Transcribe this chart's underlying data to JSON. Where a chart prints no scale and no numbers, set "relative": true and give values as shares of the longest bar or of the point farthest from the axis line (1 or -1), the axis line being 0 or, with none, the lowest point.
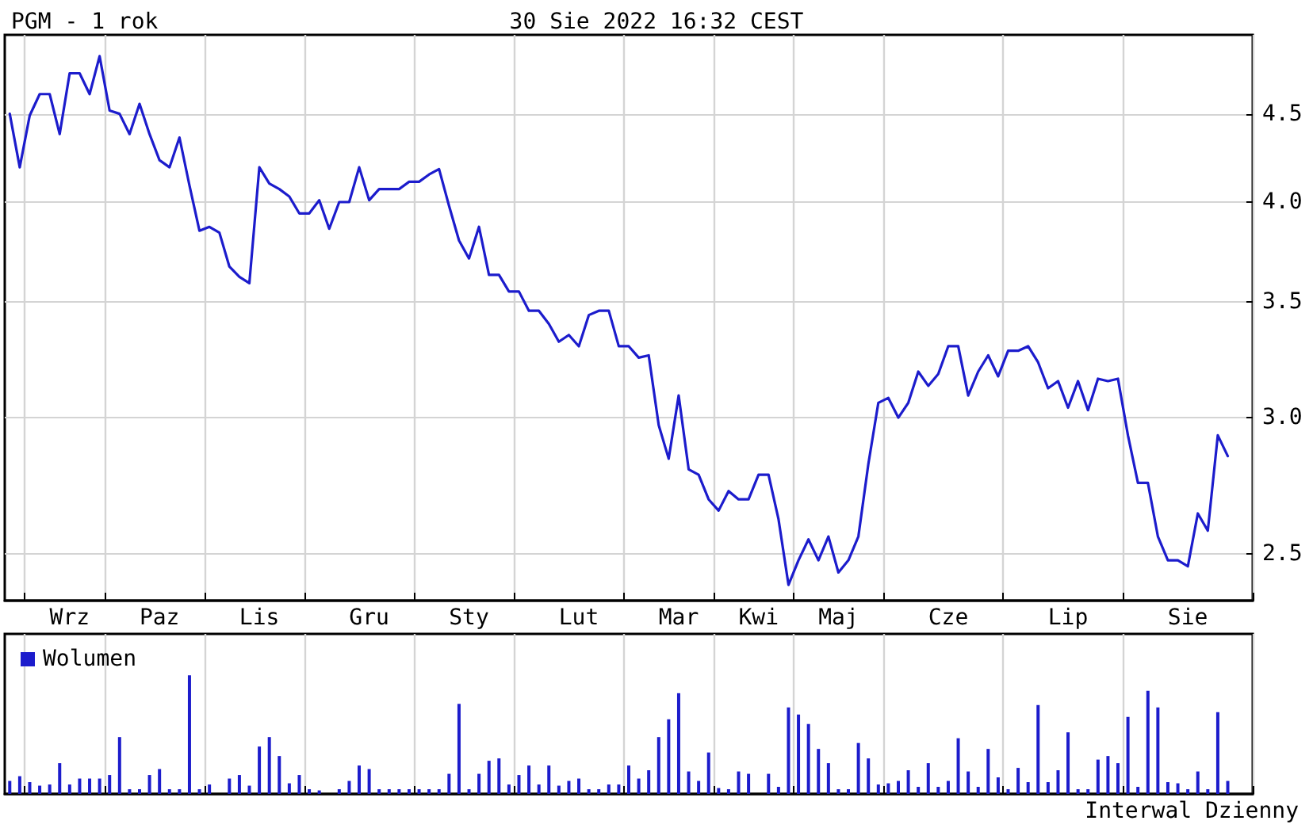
{
  "chart_data": [
    {
      "type": "line",
      "title": "PGM - 1 rok",
      "subtitle": "30 Sie 2022 16:32 CEST",
      "categories": [
        null,
        null,
        null,
        null,
        null,
        null,
        "Wrz",
        null,
        null,
        null,
        null,
        null,
        null,
        null,
        null,
        "Paz",
        null,
        null,
        null,
        null,
        null,
        null,
        null,
        null,
        null,
        "Lis",
        null,
        null,
        null,
        null,
        null,
        null,
        null,
        null,
        null,
        null,
        "Gru",
        null,
        null,
        null,
        null,
        null,
        null,
        null,
        null,
        null,
        "Sty",
        null,
        null,
        null,
        null,
        null,
        null,
        null,
        null,
        null,
        null,
        "Lut",
        null,
        null,
        null,
        null,
        null,
        null,
        null,
        null,
        null,
        "Mar",
        null,
        null,
        null,
        null,
        null,
        null,
        null,
        "Kwi",
        null,
        null,
        null,
        null,
        null,
        null,
        null,
        "Maj",
        null,
        null,
        null,
        null,
        null,
        null,
        null,
        null,
        null,
        null,
        "Cze",
        null,
        null,
        null,
        null,
        null,
        null,
        null,
        null,
        null,
        null,
        null,
        "Lip",
        null,
        null,
        null,
        null,
        null,
        null,
        null,
        null,
        null,
        null,
        null,
        "Sie",
        null,
        null,
        null,
        null,
        null,
        null
      ],
      "series": [
        {
          "color": "#1c1ccc",
          "values": [
            4.5,
            4.19,
            4.49,
            4.62,
            4.62,
            4.38,
            4.75,
            4.75,
            4.62,
            4.86,
            4.52,
            4.5,
            4.38,
            4.56,
            4.38,
            4.23,
            4.19,
            4.36,
            4.09,
            3.85,
            3.87,
            3.84,
            3.67,
            3.62,
            3.59,
            4.19,
            4.1,
            4.07,
            4.03,
            3.94,
            3.94,
            4.01,
            3.86,
            4.0,
            4.0,
            4.19,
            4.01,
            4.07,
            4.07,
            4.07,
            4.11,
            4.11,
            4.15,
            4.18,
            3.98,
            3.8,
            3.71,
            3.87,
            3.63,
            3.63,
            3.55,
            3.55,
            3.46,
            3.46,
            3.4,
            3.32,
            3.35,
            3.3,
            3.44,
            3.46,
            3.46,
            3.3,
            3.3,
            3.25,
            3.26,
            2.97,
            2.84,
            3.09,
            2.8,
            2.78,
            2.69,
            2.65,
            2.72,
            2.69,
            2.69,
            2.78,
            2.78,
            2.62,
            2.4,
            2.48,
            2.55,
            2.48,
            2.56,
            2.44,
            2.48,
            2.56,
            2.82,
            3.06,
            3.08,
            3.0,
            3.06,
            3.19,
            3.13,
            3.18,
            3.3,
            3.3,
            3.09,
            3.19,
            3.26,
            3.17,
            3.28,
            3.28,
            3.3,
            3.23,
            3.12,
            3.15,
            3.04,
            3.15,
            3.03,
            3.16,
            3.15,
            3.16,
            2.93,
            2.75,
            2.75,
            2.56,
            2.48,
            2.48,
            2.46,
            2.64,
            2.58,
            2.93,
            2.85,
            null,
            null
          ]
        }
      ],
      "ylim": [
        2.35,
        5.0
      ],
      "yticks": [
        2.5,
        {
          "value": 3.0,
          "label": "3.0"
        },
        3.5,
        {
          "value": 4.0,
          "label": "4.0"
        },
        4.5
      ],
      "log": true,
      "grid": true,
      "legend": false
    },
    {
      "type": "bar",
      "relative": true,
      "grid": "x",
      "legend": "top left",
      "annotations": [
        "Interwal Dzienny"
      ],
      "categories": [
        null,
        null,
        null,
        null,
        null,
        null,
        null,
        null,
        null,
        null,
        null,
        null,
        null,
        null,
        null,
        null,
        null,
        null,
        null,
        null,
        null,
        null,
        null,
        null,
        null,
        null,
        null,
        null,
        null,
        null,
        null,
        null,
        null,
        null,
        null,
        null,
        null,
        null,
        null,
        null,
        null,
        null,
        null,
        null,
        null,
        null,
        null,
        null,
        null,
        null,
        null,
        null,
        null,
        null,
        null,
        null,
        null,
        null,
        null,
        null,
        null,
        null,
        null,
        null,
        null,
        null,
        null,
        null,
        null,
        null,
        null,
        null,
        null,
        null,
        null,
        null,
        null,
        null,
        null,
        null,
        null,
        null,
        null,
        null,
        null,
        null,
        null,
        null,
        null,
        null,
        null,
        null,
        null,
        null,
        null,
        null,
        null,
        null,
        null,
        null,
        null,
        null,
        null,
        null,
        null,
        null,
        null,
        null,
        null,
        null,
        null,
        null,
        null,
        null,
        null,
        null,
        null,
        null,
        null,
        null,
        null,
        null,
        null,
        null,
        null
      ],
      "series": [
        {
          "name": "Wolumen",
          "color": "#1c1ccc",
          "values": [
            0.11,
            0.15,
            0.1,
            0.07,
            0.08,
            0.26,
            0.08,
            0.13,
            0.13,
            0.13,
            0.16,
            0.48,
            0.04,
            0.04,
            0.16,
            0.21,
            0.04,
            0.04,
            1,
            0.04,
            0.08,
            null,
            0.13,
            0.16,
            0.07,
            0.4,
            0.48,
            0.32,
            0.09,
            0.16,
            0.04,
            0.03,
            null,
            0.04,
            0.11,
            0.24,
            0.21,
            0.04,
            0.04,
            0.04,
            0.04,
            0.04,
            0.04,
            0.04,
            0.17,
            0.76,
            0.04,
            0.17,
            0.28,
            0.3,
            0.08,
            0.16,
            0.24,
            0.08,
            0.24,
            0.07,
            0.11,
            0.13,
            0.04,
            0.04,
            0.08,
            0.08,
            0.24,
            0.13,
            0.2,
            0.48,
            0.63,
            0.85,
            0.19,
            0.11,
            0.35,
            0.05,
            0.04,
            0.19,
            0.17,
            null,
            0.17,
            0.06,
            0.73,
            0.67,
            0.59,
            0.38,
            0.26,
            0.04,
            0.04,
            0.43,
            0.3,
            0.08,
            0.09,
            0.11,
            0.2,
            0.06,
            0.26,
            0.06,
            0.11,
            0.47,
            0.19,
            0.06,
            0.38,
            0.14,
            0.04,
            0.22,
            0.1,
            0.75,
            0.1,
            0.2,
            0.52,
            0.04,
            0.04,
            0.29,
            0.32,
            0.26,
            0.65,
            0.06,
            0.87,
            0.73,
            0.1,
            0.09,
            0.04,
            0.19,
            0.04,
            0.69,
            0.11,
            null,
            null
          ]
        }
      ]
    }
  ]
}
